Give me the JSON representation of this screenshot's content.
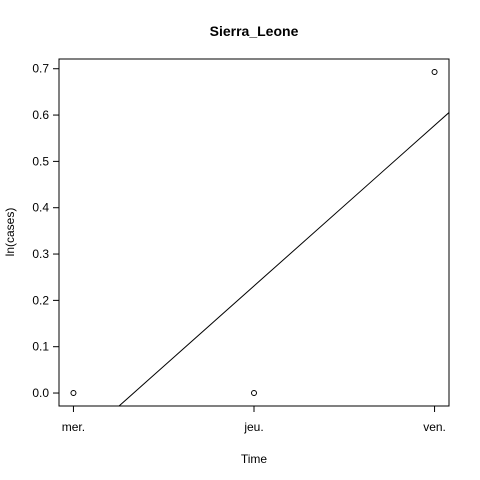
{
  "chart_data": {
    "type": "scatter",
    "title": "Sierra_Leone",
    "xlabel": "Time",
    "ylabel": "ln(cases)",
    "categories": [
      "mer.",
      "jeu.",
      "ven."
    ],
    "x_index": [
      0,
      1,
      2
    ],
    "values": [
      0.0,
      0.0,
      0.693
    ],
    "yticks": [
      0.0,
      0.1,
      0.2,
      0.3,
      0.4,
      0.5,
      0.6,
      0.7
    ],
    "ytick_labels": [
      "0.0",
      "0.1",
      "0.2",
      "0.3",
      "0.4",
      "0.5",
      "0.6",
      "0.7"
    ],
    "ylim": [
      -0.028,
      0.721
    ],
    "xlim": [
      -0.08,
      2.08
    ],
    "fit_line": {
      "type": "linear",
      "intercept": -0.1155,
      "slope": 0.3466
    },
    "grid": false,
    "legend": "none"
  }
}
